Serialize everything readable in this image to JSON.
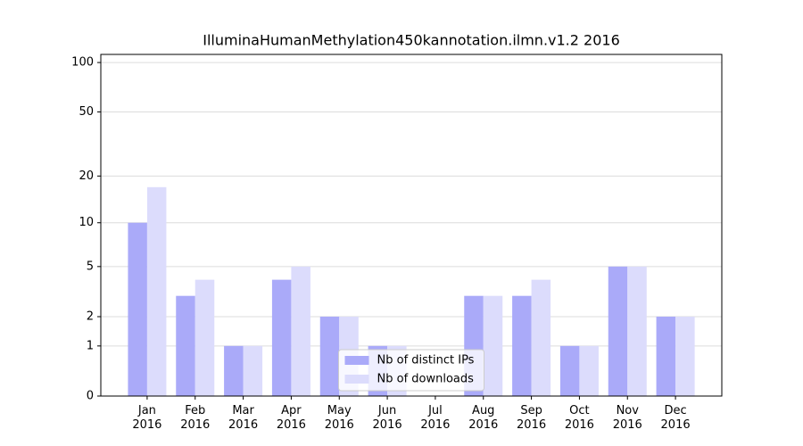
{
  "chart_data": {
    "type": "bar",
    "title": "IlluminaHumanMethylation450kannotation.ilmn.v1.2 2016",
    "categories": [
      "Jan\n2016",
      "Feb\n2016",
      "Mar\n2016",
      "Apr\n2016",
      "May\n2016",
      "Jun\n2016",
      "Jul\n2016",
      "Aug\n2016",
      "Sep\n2016",
      "Oct\n2016",
      "Nov\n2016",
      "Dec\n2016"
    ],
    "series": [
      {
        "name": "Nb of distinct IPs",
        "color": "#aaaaf9",
        "values": [
          10,
          3,
          1,
          4,
          2,
          1,
          0,
          3,
          3,
          1,
          5,
          2
        ]
      },
      {
        "name": "Nb of downloads",
        "color": "#dcdcfc",
        "values": [
          17,
          4,
          1,
          5,
          2,
          1,
          0,
          3,
          4,
          1,
          5,
          2
        ]
      }
    ],
    "yscale": "symlog",
    "ylim": [
      0,
      112
    ],
    "yticks": [
      0,
      1,
      2,
      5,
      10,
      20,
      50,
      100
    ],
    "grid": true,
    "legend": "lower center"
  }
}
